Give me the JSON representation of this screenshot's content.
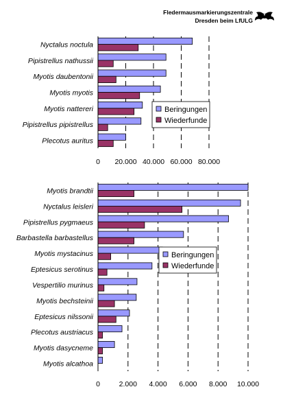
{
  "header": {
    "line1": "Fledermausmarkierungszentrale",
    "line2": "Dresden beim LfULG",
    "logo_icon": "bat-icon"
  },
  "colors": {
    "beringungen": "#9999ff",
    "wiederfunde": "#993366",
    "gridline": "#000000"
  },
  "chart_data": [
    {
      "type": "bar",
      "orientation": "horizontal",
      "categories": [
        "Nyctalus noctula",
        "Pipistrellus nathussii",
        "Myotis daubentonii",
        "Myotis myotis",
        "Myotis nattereri",
        "Pipistrellus pipistrellus",
        "Plecotus auritus"
      ],
      "series": [
        {
          "name": "Beringungen",
          "values": [
            68000,
            49000,
            49000,
            45000,
            32000,
            31000,
            20000
          ]
        },
        {
          "name": "Wiederfunde",
          "values": [
            29000,
            11000,
            13000,
            30000,
            26000,
            7000,
            11000
          ]
        }
      ],
      "xlim": [
        0,
        80000
      ],
      "ticks": [
        0,
        20000,
        40000,
        60000,
        80000
      ],
      "tick_labels": [
        "0",
        "20.000",
        "40.000",
        "60.000",
        "80.000"
      ],
      "grid": "vertical dashed",
      "legend": "right"
    },
    {
      "type": "bar",
      "orientation": "horizontal",
      "categories": [
        "Myotis brandtii",
        "Nyctalus leisleri",
        "Pipistrellus pygmaeus",
        "Barbastella barbastellus",
        "Myotis mystacinus",
        "Eptesicus serotinus",
        "Vespertilio murinus",
        "Myotis bechsteinii",
        "Eptesicus nilssonii",
        "Plecotus austriacus",
        "Myotis dasycneme",
        "Myotis alcathoa"
      ],
      "series": [
        {
          "name": "Beringungen",
          "values": [
            10000,
            9500,
            8700,
            5700,
            4300,
            3600,
            2600,
            2550,
            2100,
            1600,
            1100,
            300
          ]
        },
        {
          "name": "Wiederfunde",
          "values": [
            2400,
            5600,
            3100,
            2400,
            850,
            600,
            400,
            1100,
            1200,
            300,
            300,
            0
          ]
        }
      ],
      "xlim": [
        0,
        10000
      ],
      "ticks": [
        0,
        2000,
        4000,
        6000,
        8000,
        10000
      ],
      "tick_labels": [
        "0",
        "2.000",
        "4.000",
        "6.000",
        "8.000",
        "10.000"
      ],
      "grid": "vertical dashed",
      "legend": "right"
    }
  ]
}
